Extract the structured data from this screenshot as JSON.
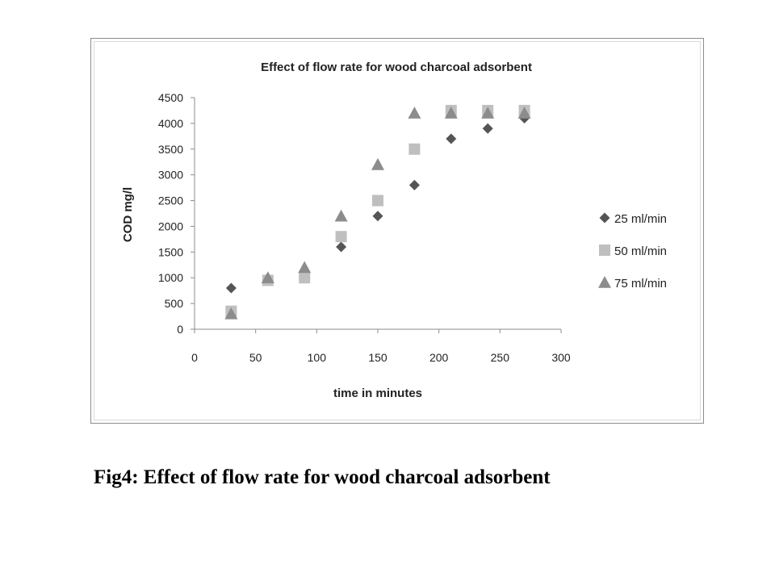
{
  "caption": "Fig4: Effect of flow rate for wood charcoal adsorbent",
  "chart_data": {
    "type": "scatter",
    "title": "Effect of flow rate for wood charcoal adsorbent",
    "xlabel": "time in minutes",
    "ylabel": "COD mg/l",
    "xlim": [
      0,
      300
    ],
    "ylim": [
      0,
      4500
    ],
    "xticks": [
      0,
      50,
      100,
      150,
      200,
      250,
      300
    ],
    "yticks": [
      0,
      500,
      1000,
      1500,
      2000,
      2500,
      3000,
      3500,
      4000,
      4500
    ],
    "grid": false,
    "legend_position": "right",
    "series": [
      {
        "name": "25 ml/min",
        "marker": "diamond",
        "color": "#555555",
        "x": [
          30,
          60,
          90,
          120,
          150,
          180,
          210,
          240,
          270
        ],
        "y": [
          800,
          950,
          1000,
          1600,
          2200,
          2800,
          3700,
          3900,
          4100
        ]
      },
      {
        "name": "50 ml/min",
        "marker": "square",
        "color": "#bfbfbf",
        "x": [
          30,
          60,
          90,
          120,
          150,
          180,
          210,
          240,
          270
        ],
        "y": [
          350,
          950,
          1000,
          1800,
          2500,
          3500,
          4250,
          4250,
          4250
        ]
      },
      {
        "name": "75 ml/min",
        "marker": "triangle",
        "color": "#8c8c8c",
        "x": [
          30,
          60,
          90,
          120,
          150,
          180,
          210,
          240,
          270
        ],
        "y": [
          300,
          1000,
          1200,
          2200,
          3200,
          4200,
          4200,
          4200,
          4200
        ]
      }
    ]
  }
}
